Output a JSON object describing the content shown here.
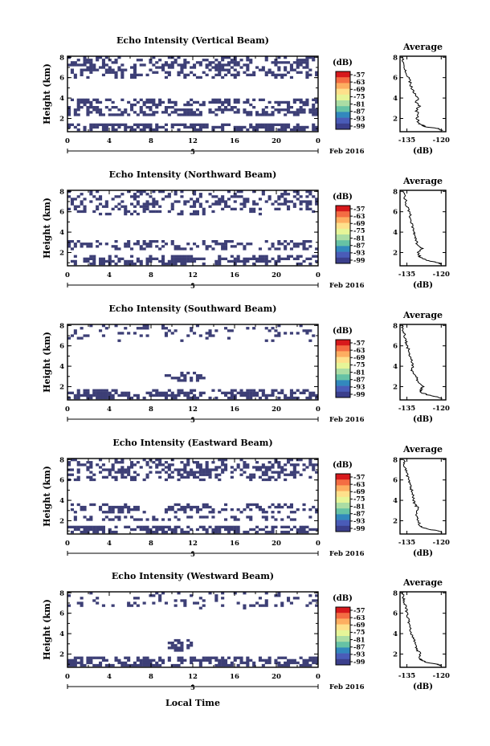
{
  "figure": {
    "xlabel": "Local Time",
    "date_label": "Feb 2016",
    "colorbar_unit": "(dB)",
    "avg_title": "Average",
    "avg_xlabel": "(dB)"
  },
  "colorbar": {
    "ticks": [
      "-57",
      "-63",
      "-69",
      "-75",
      "-81",
      "-87",
      "-93",
      "-99"
    ],
    "colors": [
      "#d7191c",
      "#f46d43",
      "#fdae61",
      "#fee08b",
      "#e6f598",
      "#abdda4",
      "#66c2a5",
      "#3288bd",
      "#4a5cb8",
      "#3b3f8c"
    ],
    "echo_color": "#3d3f76"
  },
  "chart_data": [
    {
      "type": "heatmap",
      "title": "Echo Intensity (Vertical Beam)",
      "ylabel": "Height (km)",
      "xticks": [
        "0",
        "4",
        "8",
        "12",
        "16",
        "20",
        "0"
      ],
      "xticks_hours": [
        0,
        4,
        8,
        12,
        16,
        20,
        24
      ],
      "day_mark": "5",
      "yticks": [
        "2",
        "4",
        "6",
        "8"
      ],
      "yticks_km": [
        2,
        4,
        6,
        8
      ],
      "xlim": [
        0,
        24
      ],
      "ylim": [
        0.7,
        8.1
      ],
      "echo_bands_km": [
        [
          0.8,
          1.6,
          0.85
        ],
        [
          2.3,
          3.1,
          0.75
        ],
        [
          3.3,
          4.0,
          0.65
        ],
        [
          6.0,
          8.0,
          0.55
        ]
      ],
      "avg_xticks": [
        "-135",
        "-120"
      ],
      "avg_xticks_db": [
        -135,
        -120
      ],
      "avg_xlim": [
        -138,
        -118
      ],
      "avg_yticks": [
        "2",
        "4",
        "6",
        "8"
      ],
      "avg_ylim": [
        0.7,
        8.1
      ],
      "avg_profile": {
        "height_km": [
          0.8,
          1.0,
          1.2,
          1.4,
          1.6,
          2.0,
          2.4,
          2.8,
          3.2,
          3.6,
          4.0,
          4.5,
          5.0,
          5.5,
          6.0,
          6.5,
          7.0,
          7.5,
          8.0
        ],
        "db": [
          -119.5,
          -121,
          -127,
          -129,
          -130,
          -130.5,
          -130,
          -131,
          -129.5,
          -131,
          -130,
          -132,
          -133,
          -133.5,
          -134,
          -135.5,
          -136,
          -136.5,
          -137
        ]
      }
    },
    {
      "type": "heatmap",
      "title": "Echo Intensity (Northward Beam)",
      "ylabel": "Height (km)",
      "xticks": [
        "0",
        "4",
        "8",
        "12",
        "16",
        "20",
        "0"
      ],
      "xticks_hours": [
        0,
        4,
        8,
        12,
        16,
        20,
        24
      ],
      "day_mark": "5",
      "yticks": [
        "2",
        "4",
        "6",
        "8"
      ],
      "yticks_km": [
        2,
        4,
        6,
        8
      ],
      "xlim": [
        0,
        24
      ],
      "ylim": [
        0.7,
        8.1
      ],
      "echo_bands_km": [
        [
          0.8,
          1.7,
          0.8
        ],
        [
          2.2,
          3.2,
          0.6
        ],
        [
          5.7,
          8.0,
          0.45
        ]
      ],
      "avg_xticks": [
        "-135",
        "-120"
      ],
      "avg_xticks_db": [
        -135,
        -120
      ],
      "avg_xlim": [
        -138,
        -118
      ],
      "avg_yticks": [
        "2",
        "4",
        "6",
        "8"
      ],
      "avg_ylim": [
        0.7,
        8.1
      ],
      "avg_profile": {
        "height_km": [
          0.8,
          1.0,
          1.2,
          1.4,
          1.6,
          2.0,
          2.4,
          2.8,
          3.2,
          3.6,
          4.0,
          4.5,
          5.0,
          5.5,
          6.0,
          6.5,
          7.0,
          7.5,
          8.0
        ],
        "db": [
          -119.5,
          -121,
          -126,
          -128,
          -129.5,
          -130,
          -128.5,
          -130.5,
          -131,
          -131.5,
          -132,
          -132.5,
          -133,
          -133.5,
          -134,
          -135,
          -135.5,
          -136,
          -136.5
        ]
      }
    },
    {
      "type": "heatmap",
      "title": "Echo Intensity (Southward Beam)",
      "ylabel": "Height (km)",
      "xticks": [
        "0",
        "4",
        "8",
        "12",
        "16",
        "20",
        "0"
      ],
      "xticks_hours": [
        0,
        4,
        8,
        12,
        16,
        20,
        24
      ],
      "day_mark": "5",
      "yticks": [
        "2",
        "4",
        "6",
        "8"
      ],
      "yticks_km": [
        2,
        4,
        6,
        8
      ],
      "xlim": [
        0,
        24
      ],
      "ylim": [
        0.7,
        8.1
      ],
      "echo_bands_km": [
        [
          0.8,
          1.7,
          0.85
        ],
        [
          6.5,
          8.0,
          0.2
        ]
      ],
      "echo_blobs": [
        {
          "x_hours": [
            9.3,
            13.2
          ],
          "height_km": [
            2.4,
            3.6
          ],
          "fill": 0.7
        }
      ],
      "avg_xticks": [
        "-135",
        "-120"
      ],
      "avg_xticks_db": [
        -135,
        -120
      ],
      "avg_xlim": [
        -138,
        -118
      ],
      "avg_yticks": [
        "2",
        "4",
        "6",
        "8"
      ],
      "avg_ylim": [
        0.7,
        8.1
      ],
      "avg_profile": {
        "height_km": [
          0.8,
          1.0,
          1.2,
          1.4,
          1.6,
          2.0,
          2.4,
          2.8,
          3.2,
          3.6,
          4.0,
          4.5,
          5.0,
          5.5,
          6.0,
          6.5,
          7.0,
          7.5,
          8.0
        ],
        "db": [
          -119.5,
          -121.5,
          -126,
          -128.5,
          -129,
          -128,
          -130,
          -130.5,
          -132,
          -133,
          -132.5,
          -133,
          -133.5,
          -134,
          -135,
          -135.5,
          -136,
          -136.5,
          -137
        ]
      }
    },
    {
      "type": "heatmap",
      "title": "Echo Intensity (Eastward Beam)",
      "ylabel": "Height (km)",
      "xticks": [
        "0",
        "4",
        "8",
        "12",
        "16",
        "20",
        "0"
      ],
      "xticks_hours": [
        0,
        4,
        8,
        12,
        16,
        20,
        24
      ],
      "day_mark": "5",
      "yticks": [
        "2",
        "4",
        "6",
        "8"
      ],
      "yticks_km": [
        2,
        4,
        6,
        8
      ],
      "xlim": [
        0,
        24
      ],
      "ylim": [
        0.7,
        8.1
      ],
      "echo_bands_km": [
        [
          0.8,
          1.6,
          0.85
        ],
        [
          2.0,
          2.6,
          0.55
        ],
        [
          2.8,
          3.6,
          0.65
        ],
        [
          6.0,
          8.0,
          0.6
        ]
      ],
      "avg_xticks": [
        "-135",
        "-120"
      ],
      "avg_xticks_db": [
        -135,
        -120
      ],
      "avg_xlim": [
        -138,
        -118
      ],
      "avg_yticks": [
        "2",
        "4",
        "6",
        "8"
      ],
      "avg_ylim": [
        0.7,
        8.1
      ],
      "avg_profile": {
        "height_km": [
          0.8,
          1.0,
          1.2,
          1.4,
          1.6,
          2.0,
          2.4,
          2.8,
          3.2,
          3.6,
          4.0,
          4.5,
          5.0,
          5.5,
          6.0,
          6.5,
          7.0,
          7.5,
          8.0
        ],
        "db": [
          -119.5,
          -121,
          -126,
          -128.5,
          -129.5,
          -130,
          -130.5,
          -131,
          -130,
          -131.5,
          -132,
          -132.5,
          -133,
          -133.5,
          -134,
          -135,
          -135.5,
          -136,
          -136.5
        ]
      }
    },
    {
      "type": "heatmap",
      "title": "Echo Intensity (Westward Beam)",
      "ylabel": "Height (km)",
      "xticks": [
        "0",
        "4",
        "8",
        "12",
        "16",
        "20",
        "0"
      ],
      "xticks_hours": [
        0,
        4,
        8,
        12,
        16,
        20,
        24
      ],
      "day_mark": "5",
      "yticks": [
        "2",
        "4",
        "6",
        "8"
      ],
      "yticks_km": [
        2,
        4,
        6,
        8
      ],
      "xlim": [
        0,
        24
      ],
      "ylim": [
        0.7,
        8.1
      ],
      "echo_bands_km": [
        [
          0.8,
          1.8,
          0.85
        ],
        [
          6.5,
          8.0,
          0.2
        ]
      ],
      "echo_blobs": [
        {
          "x_hours": [
            9.5,
            12.2
          ],
          "height_km": [
            2.3,
            3.5
          ],
          "fill": 0.7
        }
      ],
      "avg_xticks": [
        "-135",
        "-120"
      ],
      "avg_xticks_db": [
        -135,
        -120
      ],
      "avg_xlim": [
        -138,
        -118
      ],
      "avg_yticks": [
        "2",
        "4",
        "6",
        "8"
      ],
      "avg_ylim": [
        0.7,
        8.1
      ],
      "avg_profile": {
        "height_km": [
          0.8,
          1.0,
          1.2,
          1.4,
          1.6,
          2.0,
          2.4,
          2.8,
          3.2,
          3.6,
          4.0,
          4.5,
          5.0,
          5.5,
          6.0,
          6.5,
          7.0,
          7.5,
          8.0
        ],
        "db": [
          -119.5,
          -121.5,
          -127,
          -128.5,
          -129.5,
          -129,
          -130.5,
          -131,
          -131.5,
          -132,
          -133,
          -133.5,
          -134,
          -134.5,
          -135,
          -135.5,
          -136,
          -136.5,
          -137
        ]
      }
    }
  ]
}
